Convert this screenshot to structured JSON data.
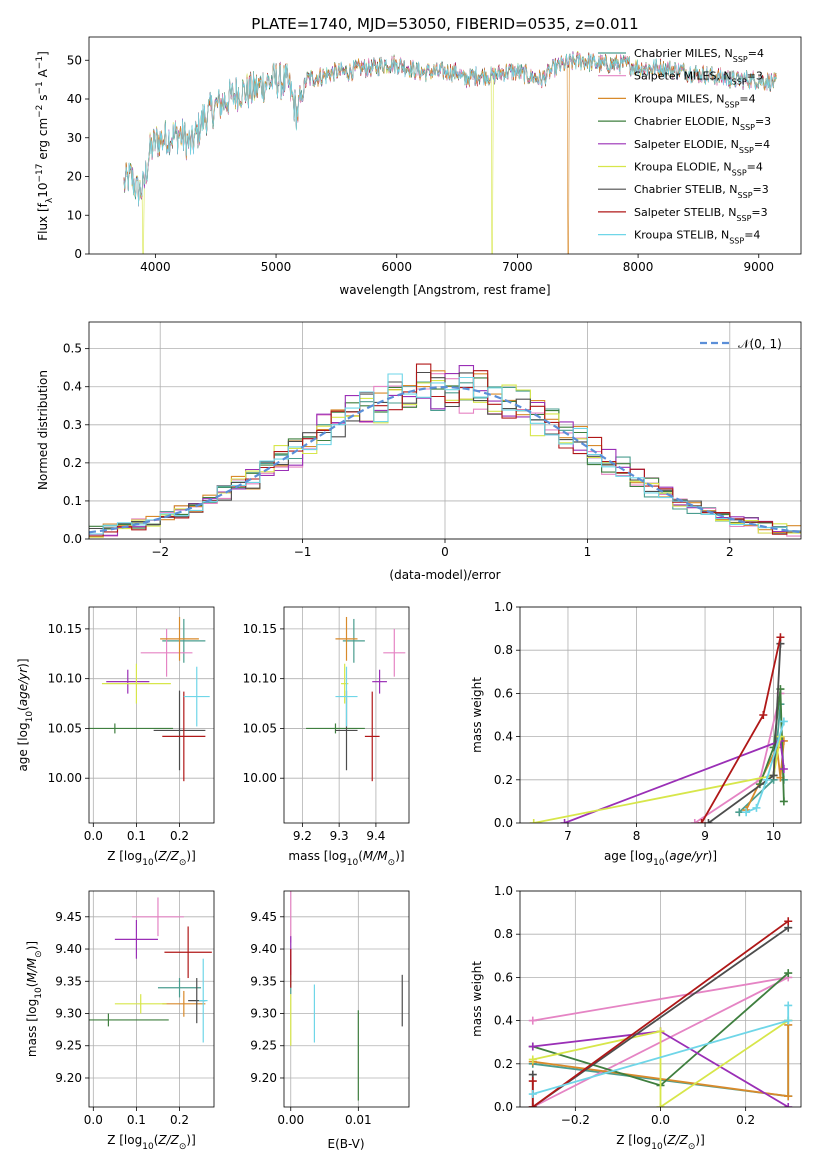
{
  "figure": {
    "title": "PLATE=1740, MJD=53050, FIBERID=0535, z=0.011"
  },
  "models": [
    {
      "name": "Chabrier MILES",
      "nssp": "4",
      "color": "#4a9d8f"
    },
    {
      "name": "Salpeter MILES",
      "nssp": "3",
      "color": "#e584c4"
    },
    {
      "name": "Kroupa MILES",
      "nssp": "4",
      "color": "#d88a2b"
    },
    {
      "name": "Chabrier ELODIE",
      "nssp": "3",
      "color": "#3f7f3f"
    },
    {
      "name": "Salpeter ELODIE",
      "nssp": "4",
      "color": "#9a2fb6"
    },
    {
      "name": "Kroupa ELODIE",
      "nssp": "4",
      "color": "#d7e64a"
    },
    {
      "name": "Chabrier STELIB",
      "nssp": "3",
      "color": "#4d4d4d"
    },
    {
      "name": "Salpeter STELIB",
      "nssp": "3",
      "color": "#b01818"
    },
    {
      "name": "Kroupa STELIB",
      "nssp": "4",
      "color": "#6fd6e8"
    }
  ],
  "chart_data": [
    {
      "id": "spectrum",
      "type": "line",
      "xlabel": "wavelength [Angstrom, rest frame]",
      "ylabel_parts": [
        "Flux [f",
        "λ",
        "10",
        "−17",
        " erg cm",
        "−2",
        " s",
        "−1",
        " A",
        "−1",
        "]"
      ],
      "xlim": [
        3450,
        9350
      ],
      "ylim": [
        0,
        56
      ],
      "xticks": [
        4000,
        5000,
        6000,
        7000,
        8000,
        9000
      ],
      "yticks": [
        0,
        10,
        20,
        30,
        40,
        50
      ],
      "legend_position": "top-right",
      "x_range": [
        3740,
        9150
      ],
      "envelope": [
        [
          3740,
          18
        ],
        [
          3800,
          20
        ],
        [
          3850,
          16
        ],
        [
          3900,
          17
        ],
        [
          3950,
          26
        ],
        [
          4000,
          29
        ],
        [
          4100,
          30
        ],
        [
          4200,
          31
        ],
        [
          4300,
          28
        ],
        [
          4400,
          35
        ],
        [
          4500,
          38
        ],
        [
          4600,
          40
        ],
        [
          4700,
          42
        ],
        [
          4800,
          42
        ],
        [
          4900,
          44
        ],
        [
          5000,
          45
        ],
        [
          5100,
          44
        ],
        [
          5175,
          36
        ],
        [
          5250,
          45
        ],
        [
          5400,
          46
        ],
        [
          5500,
          47
        ],
        [
          5600,
          47
        ],
        [
          5700,
          48
        ],
        [
          5800,
          48
        ],
        [
          5900,
          49
        ],
        [
          6000,
          49
        ],
        [
          6100,
          48
        ],
        [
          6200,
          47
        ],
        [
          6300,
          47
        ],
        [
          6400,
          47
        ],
        [
          6500,
          47
        ],
        [
          6563,
          45
        ],
        [
          6650,
          46
        ],
        [
          6800,
          46
        ],
        [
          6900,
          47
        ],
        [
          7000,
          47
        ],
        [
          7100,
          46
        ],
        [
          7200,
          45
        ],
        [
          7300,
          48
        ],
        [
          7500,
          50
        ],
        [
          7700,
          49
        ],
        [
          7900,
          49
        ],
        [
          8000,
          48
        ],
        [
          8200,
          48
        ],
        [
          8400,
          47
        ],
        [
          8600,
          46
        ],
        [
          8800,
          45
        ],
        [
          9000,
          45
        ],
        [
          9150,
          44
        ]
      ],
      "dropouts": [
        [
          3900,
          "Kroupa ELODIE"
        ],
        [
          6790,
          "Kroupa ELODIE"
        ],
        [
          7420,
          "Kroupa MILES"
        ]
      ]
    },
    {
      "id": "residual-histogram",
      "type": "line",
      "xlabel": "(data-model)/error",
      "ylabel": "Normed distribution",
      "xlim": [
        -2.5,
        2.5
      ],
      "ylim": [
        0,
        0.57
      ],
      "xticks": [
        -2,
        -1,
        0,
        1,
        2
      ],
      "yticks": [
        0.0,
        0.1,
        0.2,
        0.3,
        0.4,
        0.5
      ],
      "legend": "𝒩(0, 1)",
      "legend_position": "top-right",
      "reference_curve": "normal(0,1)",
      "grid": true,
      "bin_width": 0.1
    },
    {
      "id": "age-vs-Z",
      "type": "scatter",
      "xlabel": "Z [log10(Z/Z⊙)]",
      "ylabel": "age  [log10(age/yr)]",
      "xlim": [
        -0.01,
        0.28
      ],
      "ylim": [
        9.955,
        10.172
      ],
      "xticks": [
        0.0,
        0.1,
        0.2
      ],
      "yticks": [
        10.0,
        10.05,
        10.1,
        10.15
      ],
      "grid": true,
      "points": [
        {
          "model": "Chabrier MILES",
          "x": 0.21,
          "xerr": 0.05,
          "y": 10.138,
          "yerr": 0.022
        },
        {
          "model": "Salpeter MILES",
          "x": 0.17,
          "xerr": 0.06,
          "y": 10.126,
          "yerr": 0.024
        },
        {
          "model": "Kroupa MILES",
          "x": 0.2,
          "xerr": 0.045,
          "y": 10.14,
          "yerr": 0.022
        },
        {
          "model": "Chabrier ELODIE",
          "x": 0.05,
          "xerr": 0.135,
          "y": 10.05,
          "yerr": 0.005
        },
        {
          "model": "Salpeter ELODIE",
          "x": 0.08,
          "xerr": 0.05,
          "y": 10.097,
          "yerr": 0.012
        },
        {
          "model": "Kroupa ELODIE",
          "x": 0.1,
          "xerr": 0.08,
          "y": 10.095,
          "yerr": 0.02
        },
        {
          "model": "Chabrier STELIB",
          "x": 0.2,
          "xerr": 0.06,
          "y": 10.048,
          "yerr": 0.04
        },
        {
          "model": "Salpeter STELIB",
          "x": 0.21,
          "xerr": 0.05,
          "y": 10.042,
          "yerr": 0.045
        },
        {
          "model": "Kroupa STELIB",
          "x": 0.24,
          "xerr": 0.03,
          "y": 10.082,
          "yerr": 0.03
        }
      ]
    },
    {
      "id": "age-vs-mass",
      "type": "scatter",
      "xlabel": "mass [log10(M/M⊙)]",
      "xlim": [
        9.15,
        9.49
      ],
      "ylim": [
        9.955,
        10.172
      ],
      "xticks": [
        9.2,
        9.3,
        9.4
      ],
      "yticks": [
        10.0,
        10.05,
        10.1,
        10.15
      ],
      "grid": true,
      "points": [
        {
          "model": "Chabrier MILES",
          "x": 9.34,
          "xerr": 0.03,
          "y": 10.138,
          "yerr": 0.022
        },
        {
          "model": "Salpeter MILES",
          "x": 9.45,
          "xerr": 0.03,
          "y": 10.126,
          "yerr": 0.024
        },
        {
          "model": "Kroupa MILES",
          "x": 9.32,
          "xerr": 0.03,
          "y": 10.14,
          "yerr": 0.022
        },
        {
          "model": "Chabrier ELODIE",
          "x": 9.29,
          "xerr": 0.08,
          "y": 10.05,
          "yerr": 0.005
        },
        {
          "model": "Salpeter ELODIE",
          "x": 9.41,
          "xerr": 0.02,
          "y": 10.097,
          "yerr": 0.012
        },
        {
          "model": "Kroupa ELODIE",
          "x": 9.315,
          "xerr": 0.01,
          "y": 10.095,
          "yerr": 0.02
        },
        {
          "model": "Chabrier STELIB",
          "x": 9.32,
          "xerr": 0.03,
          "y": 10.048,
          "yerr": 0.04
        },
        {
          "model": "Salpeter STELIB",
          "x": 9.39,
          "xerr": 0.02,
          "y": 10.042,
          "yerr": 0.045
        },
        {
          "model": "Kroupa STELIB",
          "x": 9.32,
          "xerr": 0.03,
          "y": 10.082,
          "yerr": 0.03
        }
      ]
    },
    {
      "id": "massweight-vs-age",
      "type": "line",
      "xlabel": "age  [log10(age/yr)]",
      "ylabel": "mass weight",
      "xlim": [
        6.3,
        10.4
      ],
      "ylim": [
        0,
        1
      ],
      "xticks": [
        7,
        8,
        9,
        10
      ],
      "yticks": [
        0.0,
        0.2,
        0.4,
        0.6,
        0.8,
        1.0
      ],
      "grid": true,
      "series": [
        {
          "model": "Chabrier MILES",
          "x": [
            9.5,
            10.0,
            10.1,
            10.15
          ],
          "y": [
            0.05,
            0.2,
            0.55,
            0.2
          ]
        },
        {
          "model": "Salpeter MILES",
          "x": [
            8.85,
            9.8,
            10.1
          ],
          "y": [
            0.0,
            0.2,
            0.6
          ]
        },
        {
          "model": "Kroupa MILES",
          "x": [
            9.6,
            10.05,
            10.1,
            10.15
          ],
          "y": [
            0.06,
            0.35,
            0.21,
            0.38
          ]
        },
        {
          "model": "Chabrier ELODIE",
          "x": [
            9.8,
            10.0,
            10.1,
            10.15
          ],
          "y": [
            0.18,
            0.35,
            0.62,
            0.1
          ]
        },
        {
          "model": "Salpeter ELODIE",
          "x": [
            6.95,
            10.1,
            10.15
          ],
          "y": [
            0.0,
            0.38,
            0.25
          ]
        },
        {
          "model": "Kroupa ELODIE",
          "x": [
            6.5,
            10.0,
            10.1
          ],
          "y": [
            0.0,
            0.22,
            0.4
          ]
        },
        {
          "model": "Chabrier STELIB",
          "x": [
            9.05,
            10.0,
            10.1
          ],
          "y": [
            0.0,
            0.22,
            0.83
          ]
        },
        {
          "model": "Salpeter STELIB",
          "x": [
            8.95,
            9.85,
            10.1
          ],
          "y": [
            0.0,
            0.5,
            0.86
          ]
        },
        {
          "model": "Kroupa STELIB",
          "x": [
            9.6,
            9.75,
            9.9,
            10.15
          ],
          "y": [
            0.05,
            0.07,
            0.2,
            0.47
          ]
        }
      ]
    },
    {
      "id": "mass-vs-Z",
      "type": "scatter",
      "xlabel": "Z [log10(Z/Z⊙)]",
      "ylabel": "mass [log10(M/M⊙)]",
      "xlim": [
        -0.01,
        0.28
      ],
      "ylim": [
        9.155,
        9.49
      ],
      "xticks": [
        0.0,
        0.1,
        0.2
      ],
      "yticks": [
        9.2,
        9.25,
        9.3,
        9.35,
        9.4,
        9.45
      ],
      "grid": true,
      "points": [
        {
          "model": "Chabrier MILES",
          "x": 0.2,
          "xerr": 0.05,
          "y": 9.34,
          "yerr": 0.015
        },
        {
          "model": "Salpeter MILES",
          "x": 0.15,
          "xerr": 0.06,
          "y": 9.45,
          "yerr": 0.03
        },
        {
          "model": "Kroupa MILES",
          "x": 0.21,
          "xerr": 0.05,
          "y": 9.315,
          "yerr": 0.02
        },
        {
          "model": "Chabrier ELODIE",
          "x": 0.035,
          "xerr": 0.14,
          "y": 9.29,
          "yerr": 0.01
        },
        {
          "model": "Salpeter ELODIE",
          "x": 0.1,
          "xerr": 0.05,
          "y": 9.415,
          "yerr": 0.03
        },
        {
          "model": "Kroupa ELODIE",
          "x": 0.11,
          "xerr": 0.06,
          "y": 9.315,
          "yerr": 0.015
        },
        {
          "model": "Chabrier STELIB",
          "x": 0.24,
          "xerr": 0.02,
          "y": 9.32,
          "yerr": 0.035
        },
        {
          "model": "Salpeter STELIB",
          "x": 0.22,
          "xerr": 0.055,
          "y": 9.395,
          "yerr": 0.04
        },
        {
          "model": "Kroupa STELIB",
          "x": 0.255,
          "xerr": 0.01,
          "y": 9.32,
          "yerr": 0.065
        }
      ]
    },
    {
      "id": "mass-vs-EBV",
      "type": "scatter",
      "xlabel": "E(B-V)",
      "xlim": [
        -0.001,
        0.0175
      ],
      "ylim": [
        9.155,
        9.49
      ],
      "xticks": [
        0.0,
        0.01
      ],
      "yticks": [
        9.2,
        9.25,
        9.3,
        9.35,
        9.4,
        9.45
      ],
      "grid": true,
      "points": [
        {
          "model": "Chabrier MILES",
          "x": 0.0,
          "yerr": 0.03,
          "y": 9.36
        },
        {
          "model": "Salpeter MILES",
          "x": 0.0,
          "yerr": 0.04,
          "y": 9.45
        },
        {
          "model": "Kroupa MILES",
          "x": 0.0,
          "yerr": 0.02,
          "y": 9.38
        },
        {
          "model": "Chabrier ELODIE",
          "x": 0.01,
          "yerr": 0.07,
          "y": 9.235
        },
        {
          "model": "Salpeter ELODIE",
          "x": 0.0,
          "yerr": 0.03,
          "y": 9.39
        },
        {
          "model": "Kroupa ELODIE",
          "x": 0.0,
          "yerr": 0.04,
          "y": 9.29
        },
        {
          "model": "Chabrier STELIB",
          "x": 0.0165,
          "yerr": 0.04,
          "y": 9.32
        },
        {
          "model": "Salpeter STELIB",
          "x": 0.0,
          "yerr": 0.03,
          "y": 9.37
        },
        {
          "model": "Kroupa STELIB",
          "x": 0.0035,
          "yerr": 0.045,
          "y": 9.3
        }
      ]
    },
    {
      "id": "massweight-vs-Z",
      "type": "line",
      "xlabel": "Z [log10(Z/Z⊙)]",
      "ylabel": "mass weight",
      "xlim": [
        -0.33,
        0.33
      ],
      "ylim": [
        0,
        1
      ],
      "xticks": [
        -0.2,
        0.0,
        0.2
      ],
      "yticks": [
        0.0,
        0.2,
        0.4,
        0.6,
        0.8,
        1.0
      ],
      "grid": true,
      "series": [
        {
          "model": "Chabrier MILES",
          "x": [
            -0.3,
            0.3,
            0.3
          ],
          "y": [
            0.2,
            0.05,
            0.4
          ]
        },
        {
          "model": "Salpeter MILES",
          "x": [
            -0.3,
            0.3,
            -0.3
          ],
          "y": [
            0.0,
            0.6,
            0.4
          ]
        },
        {
          "model": "Kroupa MILES",
          "x": [
            -0.3,
            0.3,
            0.3
          ],
          "y": [
            0.21,
            0.05,
            0.38
          ]
        },
        {
          "model": "Chabrier ELODIE",
          "x": [
            -0.3,
            0.0,
            0.3
          ],
          "y": [
            0.28,
            0.1,
            0.62
          ]
        },
        {
          "model": "Salpeter ELODIE",
          "x": [
            -0.3,
            0.0,
            0.3
          ],
          "y": [
            0.28,
            0.35,
            0.0
          ]
        },
        {
          "model": "Kroupa ELODIE",
          "x": [
            -0.3,
            0.0,
            0.0,
            0.3
          ],
          "y": [
            0.22,
            0.35,
            0.0,
            0.4
          ]
        },
        {
          "model": "Chabrier STELIB",
          "x": [
            -0.3,
            -0.3,
            0.3
          ],
          "y": [
            0.15,
            0.0,
            0.83
          ]
        },
        {
          "model": "Salpeter STELIB",
          "x": [
            -0.3,
            -0.3,
            0.3
          ],
          "y": [
            0.12,
            0.0,
            0.86
          ]
        },
        {
          "model": "Kroupa STELIB",
          "x": [
            -0.3,
            0.3,
            0.3
          ],
          "y": [
            0.06,
            0.4,
            0.47
          ]
        }
      ]
    }
  ]
}
